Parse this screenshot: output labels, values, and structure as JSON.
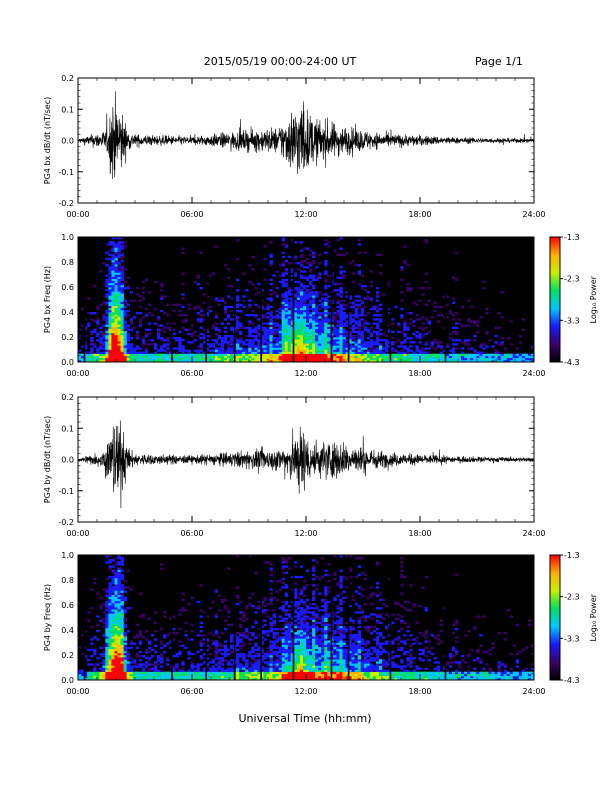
{
  "header": {
    "title": "2015/05/19  00:00-24:00 UT",
    "page": "Page 1/1"
  },
  "x_axis_title": "Universal Time (hh:mm)",
  "time_ticks": [
    "00:00",
    "06:00",
    "12:00",
    "18:00",
    "24:00"
  ],
  "colorbar": {
    "label": "Log₁₀ Power",
    "ticks": [
      "-1.3",
      "-2.3",
      "-3.3",
      "-4.3"
    ],
    "colors": [
      "#000000",
      "#3a006a",
      "#1a1aff",
      "#00c8ff",
      "#00e060",
      "#c8f000",
      "#ffb000",
      "#ff0000"
    ]
  },
  "chart_data": [
    {
      "type": "line",
      "ylabel": "PG4 bx dB/dt (nT/sec)",
      "xlim": [
        0,
        24
      ],
      "ylim": [
        -0.2,
        0.2
      ],
      "yticks": [
        "0.2",
        "0.1",
        "0.0",
        "-0.1",
        "-0.2"
      ],
      "envelope": {
        "hours": [
          0,
          1.5,
          1.8,
          2.0,
          2.3,
          2.6,
          3.0,
          4.0,
          6.0,
          8.0,
          9.0,
          10.0,
          10.5,
          11.0,
          11.5,
          11.8,
          12.0,
          12.3,
          12.7,
          13.0,
          13.5,
          14.0,
          14.5,
          15.0,
          16.0,
          17.0,
          18.0,
          20.0,
          22.0,
          24.0
        ],
        "amplitude": [
          0.01,
          0.05,
          0.2,
          0.2,
          0.15,
          0.05,
          0.03,
          0.025,
          0.02,
          0.04,
          0.05,
          0.06,
          0.06,
          0.12,
          0.18,
          0.2,
          0.15,
          0.12,
          0.1,
          0.1,
          0.08,
          0.07,
          0.06,
          0.05,
          0.035,
          0.03,
          0.025,
          0.015,
          0.012,
          0.01
        ]
      }
    },
    {
      "type": "heatmap",
      "ylabel": "PG4 bx Freq (Hz)",
      "xlim": [
        0,
        24
      ],
      "ylim": [
        0.0,
        1.0
      ],
      "yticks": [
        "1.0",
        "0.8",
        "0.6",
        "0.4",
        "0.2",
        "0.0"
      ],
      "zlim": [
        -4.3,
        -1.3
      ]
    },
    {
      "type": "line",
      "ylabel": "PG4 by dB/dt (nT/sec)",
      "xlim": [
        0,
        24
      ],
      "ylim": [
        -0.2,
        0.2
      ],
      "yticks": [
        "0.2",
        "0.1",
        "0.0",
        "-0.1",
        "-0.2"
      ],
      "envelope": {
        "hours": [
          0,
          1.3,
          1.6,
          2.0,
          2.3,
          2.6,
          3.0,
          4.0,
          6.0,
          8.0,
          9.0,
          10.0,
          10.5,
          11.0,
          11.5,
          11.8,
          12.0,
          12.3,
          12.7,
          13.0,
          13.5,
          14.0,
          14.5,
          15.0,
          16.0,
          17.0,
          18.0,
          20.0,
          22.0,
          24.0
        ],
        "amplitude": [
          0.01,
          0.04,
          0.12,
          0.2,
          0.18,
          0.06,
          0.03,
          0.025,
          0.02,
          0.035,
          0.045,
          0.05,
          0.05,
          0.08,
          0.14,
          0.18,
          0.12,
          0.1,
          0.08,
          0.1,
          0.09,
          0.08,
          0.07,
          0.06,
          0.04,
          0.03,
          0.025,
          0.015,
          0.012,
          0.01
        ]
      }
    },
    {
      "type": "heatmap",
      "ylabel": "PG4 by Freq (Hz)",
      "xlim": [
        0,
        24
      ],
      "ylim": [
        0.0,
        1.0
      ],
      "yticks": [
        "1.0",
        "0.8",
        "0.6",
        "0.4",
        "0.2",
        "0.0"
      ],
      "zlim": [
        -4.3,
        -1.3
      ]
    }
  ]
}
